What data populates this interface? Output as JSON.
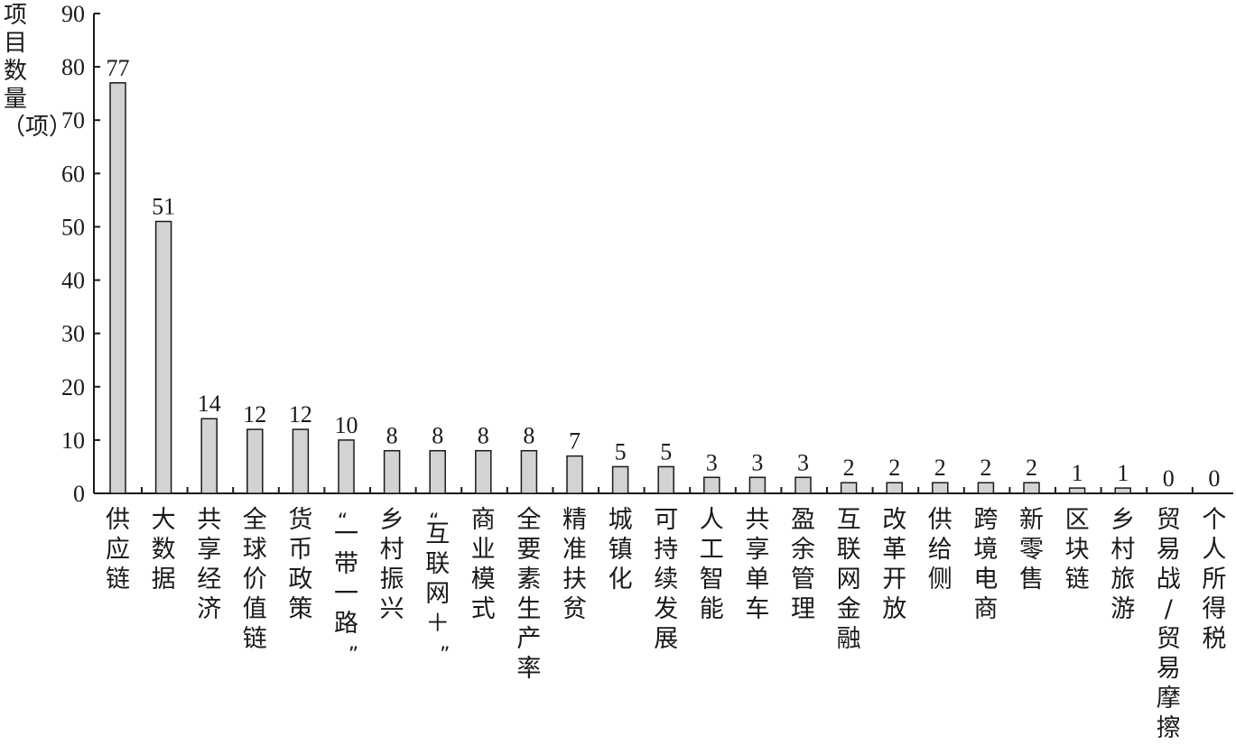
{
  "chart_data": {
    "type": "bar",
    "ylabel": "项目数量（项）",
    "ylim": [
      0,
      90
    ],
    "yticks": [
      0,
      10,
      20,
      30,
      40,
      50,
      60,
      70,
      80,
      90
    ],
    "grid": false,
    "categories": [
      "供应链",
      "大数据",
      "共享经济",
      "全球价值链",
      "货币政策",
      "“一带一路”",
      "乡村振兴",
      "“互联网＋”",
      "商业模式",
      "全要素生产率",
      "精准扶贫",
      "城镇化",
      "可持续发展",
      "人工智能",
      "共享单车",
      "盈余管理",
      "互联网金融",
      "改革开放",
      "供给侧",
      "跨境电商",
      "新零售",
      "区块链",
      "乡村旅游",
      "贸易战/贸易摩擦",
      "个人所得税"
    ],
    "values": [
      77,
      51,
      14,
      12,
      12,
      10,
      8,
      8,
      8,
      8,
      7,
      5,
      5,
      3,
      3,
      3,
      2,
      2,
      2,
      2,
      2,
      1,
      1,
      0,
      0
    ],
    "bar_color": "#d3d3d3",
    "bar_edge_color": "#1a1a1a"
  }
}
